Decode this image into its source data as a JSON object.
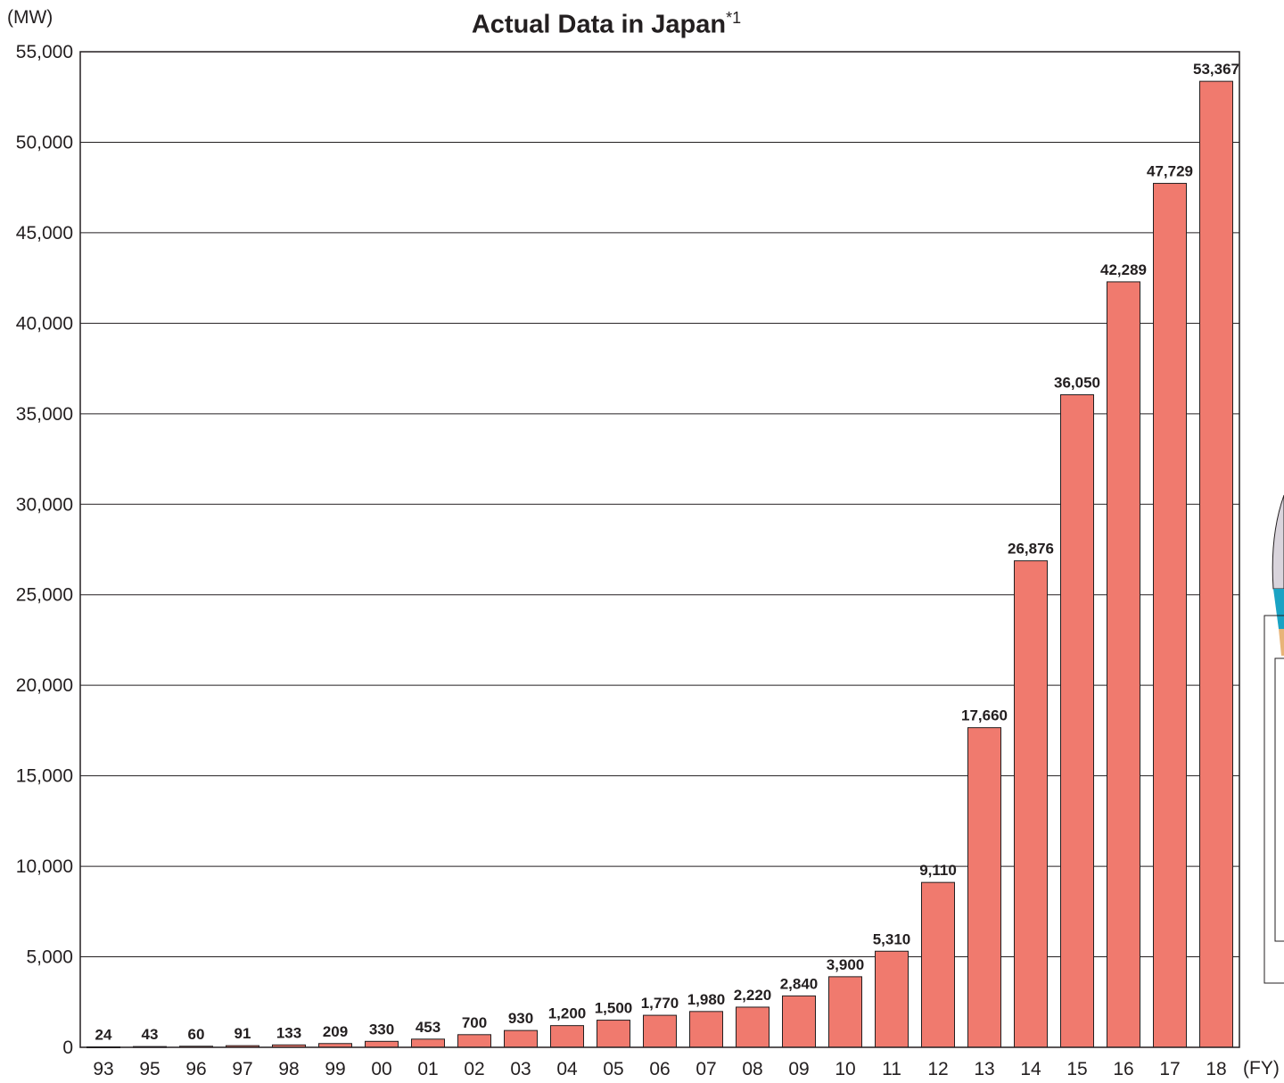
{
  "chart_data": {
    "type": "bar",
    "title": "Actual Data in Japan",
    "title_footnote": "*1",
    "ylabel": "(MW)",
    "xlabel": "(FY)",
    "ylim": [
      0,
      55000
    ],
    "yticks": [
      0,
      5000,
      10000,
      15000,
      20000,
      25000,
      30000,
      35000,
      40000,
      45000,
      50000,
      55000
    ],
    "ytick_labels": [
      "0",
      "5,000",
      "10,000",
      "15,000",
      "20,000",
      "25,000",
      "30,000",
      "35,000",
      "40,000",
      "45,000",
      "50,000",
      "55,000"
    ],
    "grid": "horizontal",
    "categories": [
      "93",
      "95",
      "96",
      "97",
      "98",
      "99",
      "00",
      "01",
      "02",
      "03",
      "04",
      "05",
      "06",
      "07",
      "08",
      "09",
      "10",
      "11",
      "12",
      "13",
      "14",
      "15",
      "16",
      "17",
      "18"
    ],
    "values": [
      24,
      43,
      60,
      91,
      133,
      209,
      330,
      453,
      700,
      930,
      1200,
      1500,
      1770,
      1980,
      2220,
      2840,
      3900,
      5310,
      9110,
      17660,
      26876,
      36050,
      42289,
      47729,
      53367
    ],
    "value_labels": [
      "24",
      "43",
      "60",
      "91",
      "133",
      "209",
      "330",
      "453",
      "700",
      "930",
      "1,200",
      "1,500",
      "1,770",
      "1,980",
      "2,220",
      "2,840",
      "3,900",
      "5,310",
      "9,110",
      "17,660",
      "26,876",
      "36,050",
      "42,289",
      "47,729",
      "53,367"
    ],
    "colors": {
      "bar": "#f07a6e",
      "bar_stroke": "#231f20",
      "grid": "#231f20",
      "text": "#231f20"
    }
  }
}
